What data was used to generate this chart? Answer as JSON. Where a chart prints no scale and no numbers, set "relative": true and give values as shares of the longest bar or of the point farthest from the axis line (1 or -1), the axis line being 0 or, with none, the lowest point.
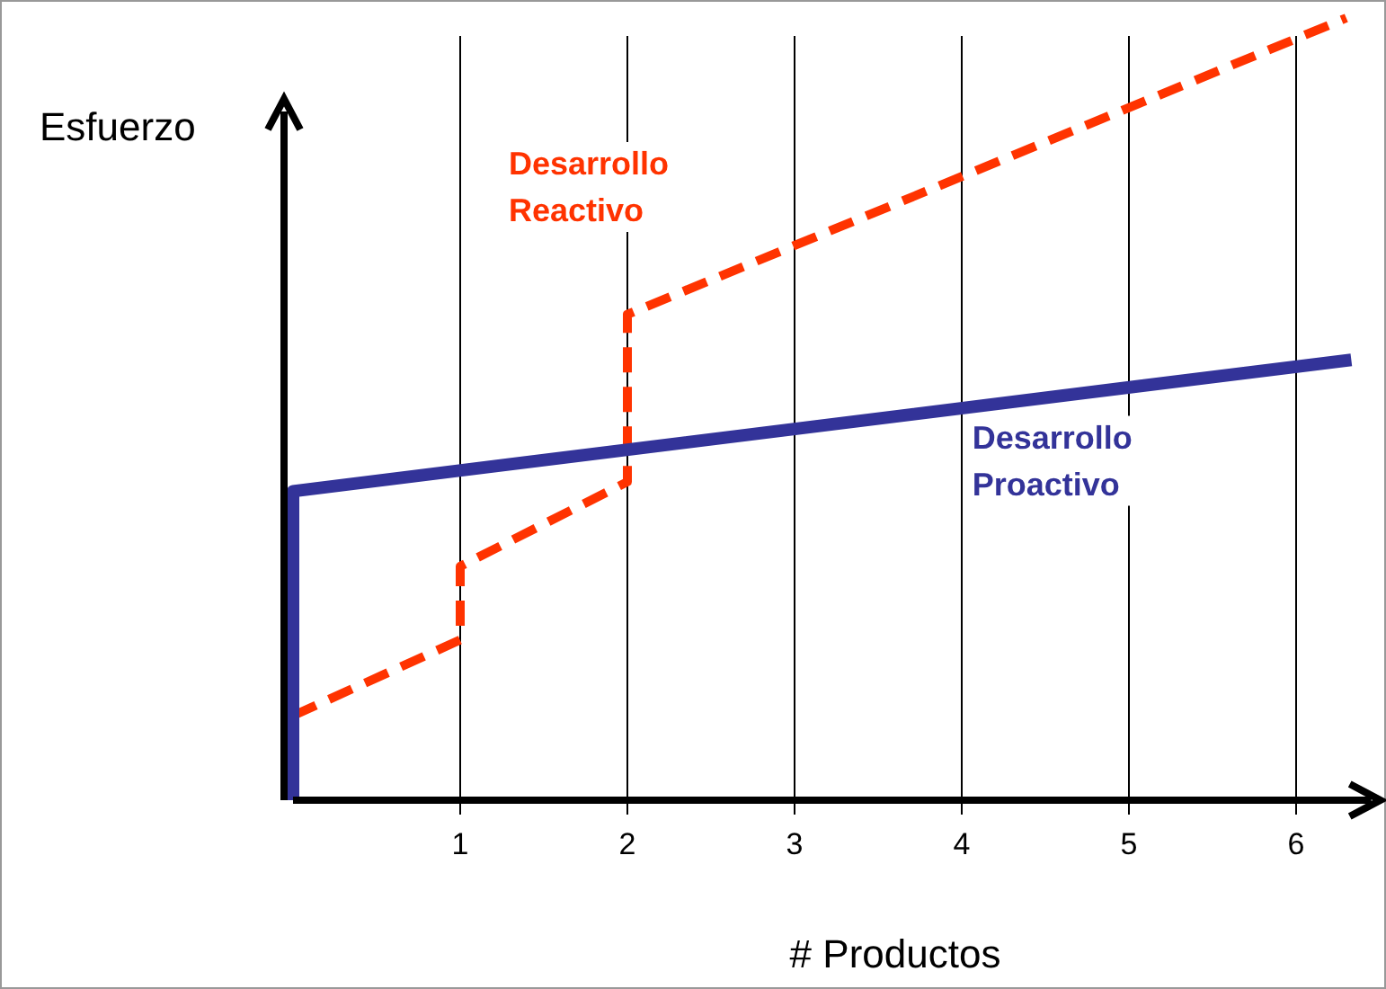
{
  "chart_data": {
    "type": "line",
    "relative": true,
    "xlabel": "# Productos",
    "ylabel": "Esfuerzo",
    "xlim": [
      0,
      6.45
    ],
    "xticks": [
      1,
      2,
      3,
      4,
      5,
      6
    ],
    "grid": "x",
    "series": [
      {
        "name": "Desarrollo Reactivo",
        "color": "#ff3300",
        "line_style": "dashed",
        "x": [
          0,
          1,
          1,
          2,
          2,
          6.3
        ],
        "values": [
          0.108,
          0.205,
          0.299,
          0.407,
          0.621,
          1
        ]
      },
      {
        "name": "Desarrollo Proactivo",
        "color": "#333399",
        "line_style": "solid",
        "x": [
          0,
          0,
          6.33
        ],
        "values": [
          0,
          0.395,
          0.563
        ]
      }
    ]
  }
}
